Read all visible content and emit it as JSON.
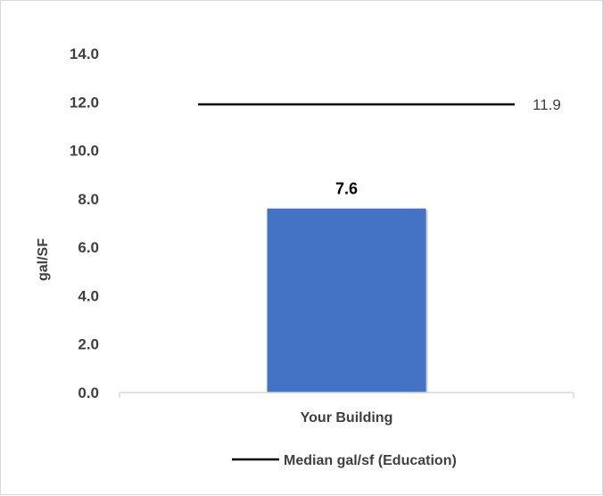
{
  "chart_data": {
    "type": "bar",
    "categories": [
      "Your Building"
    ],
    "series": [
      {
        "values": [
          7.6
        ],
        "color": "#4472c4"
      }
    ],
    "data_labels": [
      "7.6"
    ],
    "title": "",
    "xlabel": "",
    "ylabel": "gal/SF",
    "ylim": [
      0,
      14
    ],
    "yticks": [
      "0.0",
      "2.0",
      "4.0",
      "6.0",
      "8.0",
      "10.0",
      "12.0",
      "14.0"
    ],
    "grid": false,
    "reference_line": {
      "name": "Median gal/sf (Education)",
      "value": 11.9,
      "label": "11.9",
      "color": "#000000"
    },
    "legend": {
      "placement": "bottom",
      "entries": [
        "Median gal/sf (Education)"
      ]
    }
  }
}
